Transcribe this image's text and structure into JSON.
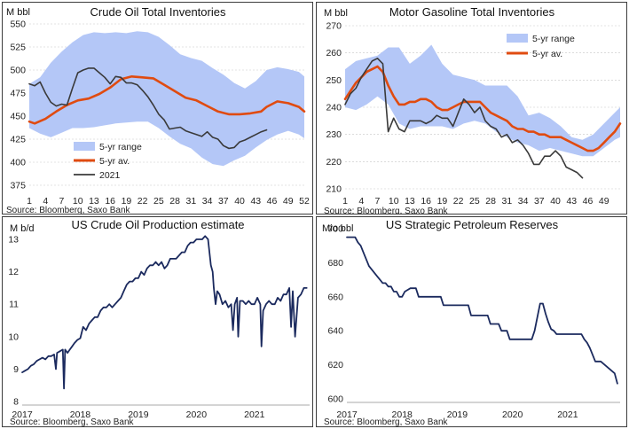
{
  "chart_data": [
    {
      "type": "area",
      "title": "Crude  Oil  Total  Inventories",
      "ylabel": "M bbl",
      "source": "Source: Bloomberg, Saxo Bank",
      "ylim": [
        375,
        550
      ],
      "yticks": [
        375,
        400,
        425,
        450,
        475,
        500,
        525,
        550
      ],
      "xlim": [
        1,
        52
      ],
      "xticks": [
        1,
        4,
        7,
        10,
        13,
        16,
        19,
        22,
        25,
        28,
        31,
        34,
        37,
        40,
        43,
        46,
        49,
        52
      ],
      "grid": true,
      "legend_position": "bottom-left",
      "legend": [
        "5-yr range",
        "5-yr av.",
        "2021"
      ],
      "series": [
        {
          "name": "5-yr range",
          "kind": "band",
          "color": "#b4c7f7",
          "x": [
            1,
            3,
            5,
            7,
            9,
            11,
            13,
            15,
            17,
            19,
            21,
            23,
            25,
            27,
            29,
            31,
            33,
            35,
            37,
            39,
            41,
            43,
            45,
            47,
            49,
            51,
            52
          ],
          "low": [
            437,
            431,
            427,
            432,
            437,
            437,
            438,
            440,
            442,
            443,
            444,
            444,
            437,
            428,
            420,
            415,
            405,
            398,
            396,
            402,
            407,
            416,
            424,
            430,
            434,
            430,
            426
          ],
          "high": [
            485,
            492,
            508,
            520,
            530,
            538,
            541,
            540,
            541,
            540,
            542,
            541,
            536,
            527,
            517,
            513,
            510,
            502,
            495,
            486,
            480,
            488,
            500,
            503,
            501,
            498,
            493
          ]
        },
        {
          "name": "5-yr av.",
          "kind": "line",
          "color": "#e04b10",
          "x": [
            1,
            2,
            4,
            6,
            8,
            10,
            12,
            14,
            16,
            18,
            20,
            22,
            24,
            26,
            28,
            30,
            32,
            34,
            36,
            38,
            40,
            42,
            44,
            45,
            47,
            49,
            51,
            52
          ],
          "y": [
            444,
            442,
            447,
            455,
            462,
            467,
            469,
            474,
            481,
            490,
            493,
            492,
            491,
            484,
            477,
            470,
            467,
            461,
            455,
            452,
            452,
            453,
            455,
            460,
            466,
            464,
            460,
            455
          ]
        },
        {
          "name": "2021",
          "kind": "line",
          "color": "#3a3a3a",
          "x": [
            1,
            2,
            3,
            4,
            5,
            6,
            7,
            8,
            9,
            10,
            11,
            12,
            13,
            14,
            15,
            16,
            17,
            18,
            19,
            20,
            21,
            22,
            23,
            24,
            25,
            26,
            27,
            28,
            29,
            30,
            31,
            32,
            33,
            34,
            35,
            36,
            37,
            38,
            39,
            40,
            41,
            42,
            43,
            44,
            45
          ],
          "y": [
            485,
            483,
            487,
            475,
            465,
            461,
            463,
            462,
            480,
            497,
            500,
            502,
            502,
            497,
            492,
            485,
            493,
            492,
            486,
            486,
            484,
            478,
            471,
            462,
            452,
            446,
            436,
            437,
            438,
            434,
            432,
            430,
            428,
            433,
            427,
            425,
            418,
            415,
            416,
            422,
            424,
            427,
            430,
            433,
            435
          ]
        }
      ]
    },
    {
      "type": "area",
      "title": "Motor  Gasoline  Total  Inventories",
      "ylabel": "M bbl",
      "source": "Source: Bloomberg, Saxo Bank",
      "ylim": [
        210,
        270
      ],
      "yticks": [
        210,
        220,
        230,
        240,
        250,
        260,
        270
      ],
      "xlim": [
        1,
        52
      ],
      "xticks": [
        1,
        4,
        7,
        10,
        13,
        16,
        19,
        22,
        25,
        28,
        31,
        34,
        37,
        40,
        43,
        46,
        49
      ],
      "grid": true,
      "legend_position": "top-right",
      "legend": [
        "5-yr range",
        "5-yr av."
      ],
      "series": [
        {
          "name": "5-yr range",
          "kind": "band",
          "color": "#b4c7f7",
          "x": [
            1,
            3,
            5,
            7,
            9,
            11,
            13,
            15,
            17,
            19,
            21,
            23,
            25,
            27,
            29,
            31,
            33,
            35,
            37,
            39,
            41,
            43,
            45,
            47,
            49,
            51,
            52
          ],
          "low": [
            240,
            239,
            241,
            244,
            241,
            234,
            232,
            233,
            233,
            233,
            232,
            234,
            235,
            234,
            231,
            229,
            227,
            226,
            224,
            225,
            224,
            223,
            222,
            222,
            225,
            228,
            229
          ],
          "high": [
            254,
            257,
            258,
            259,
            262,
            262,
            256,
            259,
            263,
            256,
            252,
            251,
            250,
            248,
            248,
            248,
            244,
            237,
            238,
            236,
            233,
            229,
            228,
            230,
            234,
            238,
            240
          ]
        },
        {
          "name": "5-yr av.",
          "kind": "line",
          "color": "#e04b10",
          "x": [
            1,
            2,
            3,
            4,
            5,
            6,
            7,
            8,
            9,
            10,
            11,
            12,
            13,
            14,
            15,
            16,
            17,
            18,
            19,
            20,
            21,
            22,
            23,
            24,
            25,
            26,
            27,
            28,
            29,
            30,
            31,
            32,
            33,
            34,
            35,
            36,
            37,
            38,
            39,
            40,
            41,
            42,
            43,
            44,
            45,
            46,
            47,
            48,
            49,
            50,
            51,
            52
          ],
          "y": [
            243,
            246,
            249,
            251,
            253,
            254,
            255,
            253,
            248,
            244,
            241,
            241,
            242,
            242,
            243,
            243,
            242,
            240,
            239,
            239,
            240,
            241,
            242,
            242,
            242,
            242,
            240,
            238,
            237,
            236,
            235,
            233,
            232,
            232,
            231,
            231,
            230,
            230,
            229,
            229,
            229,
            228,
            227,
            226,
            225,
            224,
            224,
            225,
            227,
            229,
            231,
            234
          ]
        },
        {
          "name": "2021",
          "kind": "line",
          "color": "#3a3a3a",
          "x": [
            1,
            2,
            3,
            4,
            5,
            6,
            7,
            8,
            9,
            10,
            11,
            12,
            13,
            14,
            15,
            16,
            17,
            18,
            19,
            20,
            21,
            22,
            23,
            24,
            25,
            26,
            27,
            28,
            29,
            30,
            31,
            32,
            33,
            34,
            35,
            36,
            37,
            38,
            39,
            40,
            41,
            42,
            43,
            44,
            45
          ],
          "y": [
            241,
            245,
            247,
            251,
            254,
            257,
            258,
            256,
            231,
            236,
            232,
            231,
            235,
            235,
            235,
            234,
            235,
            237,
            236,
            236,
            233,
            238,
            243,
            241,
            238,
            240,
            235,
            233,
            232,
            229,
            230,
            227,
            228,
            226,
            223,
            219,
            219,
            222,
            222,
            224,
            222,
            218,
            217,
            216,
            214
          ]
        }
      ]
    },
    {
      "type": "line",
      "title": "US  Crude  Oil  Production  estimate",
      "ylabel": "M b/d",
      "source": "Source: Bloomberg, Saxo Bank",
      "ylim": [
        8,
        13.3
      ],
      "yticks": [
        8,
        9,
        10,
        11,
        12,
        13
      ],
      "xlim": [
        2017,
        2021.95
      ],
      "xticks": [
        2017,
        2018,
        2019,
        2020,
        2021
      ],
      "grid": false,
      "series": [
        {
          "name": "",
          "color": "#1b2a5e",
          "x": [
            2017.0,
            2017.05,
            2017.1,
            2017.15,
            2017.2,
            2017.25,
            2017.3,
            2017.35,
            2017.4,
            2017.45,
            2017.5,
            2017.55,
            2017.58,
            2017.6,
            2017.65,
            2017.7,
            2017.72,
            2017.74,
            2017.78,
            2017.82,
            2017.86,
            2017.9,
            2017.95,
            2018.0,
            2018.05,
            2018.1,
            2018.15,
            2018.2,
            2018.25,
            2018.3,
            2018.35,
            2018.4,
            2018.45,
            2018.5,
            2018.55,
            2018.6,
            2018.65,
            2018.7,
            2018.75,
            2018.8,
            2018.85,
            2018.9,
            2018.95,
            2019.0,
            2019.05,
            2019.1,
            2019.15,
            2019.2,
            2019.25,
            2019.3,
            2019.35,
            2019.4,
            2019.45,
            2019.5,
            2019.55,
            2019.6,
            2019.65,
            2019.7,
            2019.75,
            2019.8,
            2019.85,
            2019.9,
            2019.95,
            2020.0,
            2020.05,
            2020.1,
            2020.15,
            2020.2,
            2020.25,
            2020.28,
            2020.3,
            2020.33,
            2020.36,
            2020.4,
            2020.45,
            2020.5,
            2020.55,
            2020.6,
            2020.63,
            2020.66,
            2020.7,
            2020.72,
            2020.75,
            2020.8,
            2020.85,
            2020.9,
            2020.95,
            2021.0,
            2021.05,
            2021.1,
            2021.12,
            2021.15,
            2021.2,
            2021.25,
            2021.3,
            2021.35,
            2021.4,
            2021.45,
            2021.5,
            2021.55,
            2021.6,
            2021.63,
            2021.66,
            2021.7,
            2021.75,
            2021.8,
            2021.85,
            2021.9
          ],
          "y": [
            8.9,
            8.95,
            9.0,
            9.1,
            9.15,
            9.25,
            9.3,
            9.35,
            9.3,
            9.4,
            9.4,
            9.45,
            9.0,
            9.5,
            9.55,
            9.6,
            8.4,
            9.6,
            9.5,
            9.6,
            9.7,
            9.8,
            9.9,
            9.95,
            10.3,
            10.2,
            10.4,
            10.5,
            10.6,
            10.6,
            10.8,
            10.9,
            10.9,
            11.0,
            10.9,
            11.0,
            11.1,
            11.2,
            11.4,
            11.6,
            11.7,
            11.7,
            11.8,
            11.8,
            12.0,
            11.9,
            12.1,
            12.2,
            12.2,
            12.3,
            12.2,
            12.3,
            12.1,
            12.2,
            12.4,
            12.4,
            12.4,
            12.5,
            12.6,
            12.6,
            12.8,
            12.9,
            12.9,
            13.0,
            13.0,
            13.0,
            13.1,
            13.0,
            12.2,
            12.0,
            11.5,
            11.0,
            11.4,
            11.3,
            11.0,
            11.1,
            10.9,
            11.0,
            10.2,
            11.0,
            11.2,
            10.0,
            11.1,
            11.1,
            11.0,
            11.1,
            11.0,
            11.0,
            11.2,
            11.0,
            9.7,
            10.8,
            11.0,
            11.1,
            11.0,
            11.0,
            11.2,
            11.1,
            11.3,
            11.3,
            11.5,
            10.3,
            11.4,
            10.0,
            11.2,
            11.3,
            11.5,
            11.5
          ]
        }
      ]
    },
    {
      "type": "line",
      "title": "US  Strategic  Petroleum  Reserves",
      "ylabel": "Mio bbl",
      "source": "Source: Bloomberg, Saxo Bank",
      "ylim": [
        600,
        700
      ],
      "yticks": [
        600,
        620,
        640,
        660,
        680,
        700
      ],
      "xlim": [
        2017,
        2021.95
      ],
      "xticks": [
        2017,
        2018,
        2019,
        2020,
        2021
      ],
      "grid": false,
      "series": [
        {
          "name": "",
          "color": "#1b2a5e",
          "x": [
            2017.0,
            2017.15,
            2017.2,
            2017.25,
            2017.3,
            2017.35,
            2017.4,
            2017.45,
            2017.5,
            2017.55,
            2017.6,
            2017.65,
            2017.7,
            2017.75,
            2017.8,
            2017.85,
            2017.9,
            2017.95,
            2018.0,
            2018.05,
            2018.1,
            2018.15,
            2018.25,
            2018.3,
            2018.7,
            2018.75,
            2019.2,
            2019.25,
            2019.55,
            2019.6,
            2019.75,
            2019.8,
            2019.9,
            2019.95,
            2020.35,
            2020.4,
            2020.45,
            2020.5,
            2020.55,
            2020.6,
            2020.65,
            2020.7,
            2020.75,
            2020.8,
            2020.85,
            2020.9,
            2021.25,
            2021.3,
            2021.35,
            2021.4,
            2021.45,
            2021.5,
            2021.55,
            2021.6,
            2021.85,
            2021.9
          ],
          "y": [
            695,
            695,
            692,
            690,
            686,
            682,
            678,
            676,
            674,
            672,
            670,
            668,
            668,
            666,
            666,
            663,
            663,
            660,
            660,
            663,
            664,
            665,
            665,
            660,
            660,
            655,
            655,
            649,
            649,
            644,
            644,
            640,
            640,
            635,
            635,
            640,
            648,
            656,
            656,
            650,
            645,
            641,
            640,
            638,
            638,
            638,
            638,
            635,
            633,
            630,
            626,
            622,
            622,
            622,
            615,
            609
          ]
        }
      ]
    }
  ]
}
